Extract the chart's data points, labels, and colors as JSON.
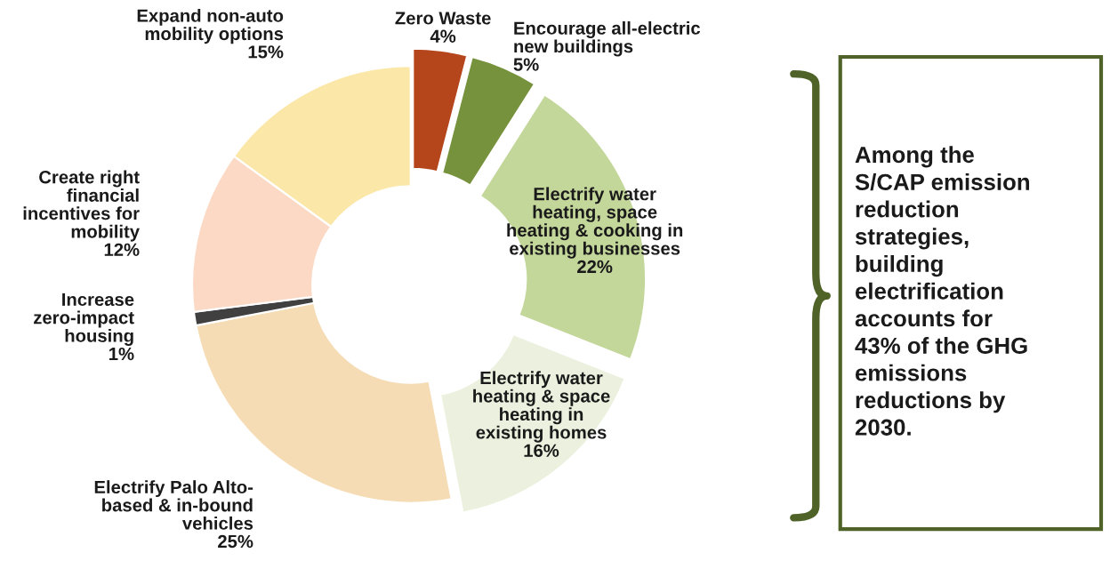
{
  "chart_data": {
    "type": "donut",
    "categories": [
      "Zero Waste",
      "Encourage all-electric\nnew buildings",
      "Electrify water\nheating, space\nheating & cooking in\nexisting businesses",
      "Electrify water\nheating & space\nheating in\nexisting homes",
      "Electrify Palo Alto-\nbased & in-bound\nvehicles",
      "Increase\nzero-impact\nhousing",
      "Create right\nfinancial\nincentives for\nmobility",
      "Expand non-auto\nmobility options"
    ],
    "values": [
      4,
      5,
      22,
      16,
      25,
      1,
      12,
      15
    ],
    "value_labels": [
      "4%",
      "5%",
      "22%",
      "16%",
      "25%",
      "1%",
      "12%",
      "15%"
    ],
    "colors": [
      "#b5451b",
      "#76923c",
      "#c4d79b",
      "#ebf1de",
      "#f5dcb4",
      "#404040",
      "#fbd9c4",
      "#fbe7a8"
    ],
    "annotations": [
      "Among the\nS/CAP emission\nreduction\nstrategies,\nbuilding\nelectrification\naccounts for\n43% of the GHG\nemissions\nreductions by\n2030."
    ]
  }
}
